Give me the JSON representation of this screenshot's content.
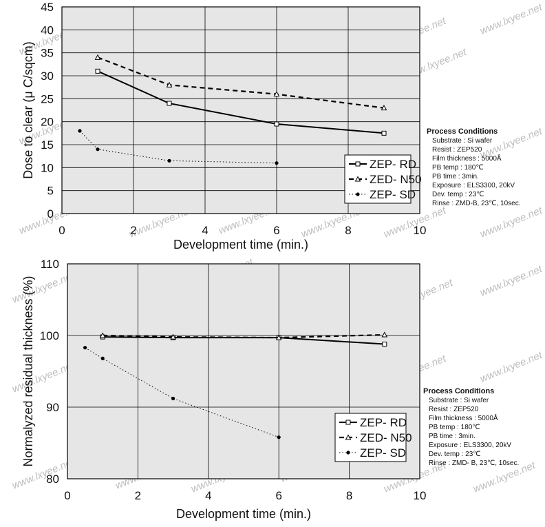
{
  "watermark": "www.lxyee.net",
  "chart_data": [
    {
      "type": "line",
      "xlabel": "Development time (min.)",
      "ylabel": "Dose to clear (μ C/sqcm)",
      "xlim": [
        0,
        10
      ],
      "ylim": [
        0,
        45
      ],
      "x_ticks": [
        "0",
        "2",
        "4",
        "6",
        "8",
        "10"
      ],
      "y_ticks": [
        "0",
        "5",
        "10",
        "15",
        "20",
        "25",
        "30",
        "35",
        "40",
        "45"
      ],
      "grid": true,
      "legend_position": "bottom-right",
      "series": [
        {
          "name": "ZEP- RD",
          "x": [
            1,
            3,
            6,
            9
          ],
          "y": [
            31,
            24,
            19.5,
            17.5
          ],
          "line": "solid",
          "marker": "square",
          "color": "#000000"
        },
        {
          "name": "ZED- N50",
          "x": [
            1,
            3,
            6,
            9
          ],
          "y": [
            34,
            28,
            26,
            23
          ],
          "line": "dashed",
          "marker": "triangle",
          "color": "#000000"
        },
        {
          "name": "ZEP- SD",
          "x": [
            0.5,
            1,
            3,
            6
          ],
          "y": [
            18,
            14,
            11.5,
            11
          ],
          "line": "dotted",
          "marker": "dot",
          "color": "#000000"
        }
      ],
      "process_conditions": {
        "title": "Process Conditions",
        "lines": [
          "Substrate : Si wafer",
          "Resist : ZEP520",
          "Film thickness : 5000Å",
          "PB temp : 180℃",
          "PB time : 3min.",
          "Exposure : ELS3300, 20kV",
          "Dev. temp : 23℃",
          "Rinse : ZMD-B, 23℃, 10sec."
        ]
      }
    },
    {
      "type": "line",
      "xlabel": "Development time (min.)",
      "ylabel": "Normalyzed residual thickness (%)",
      "xlim": [
        0,
        10
      ],
      "ylim": [
        80,
        110
      ],
      "x_ticks": [
        "0",
        "2",
        "4",
        "6",
        "8",
        "10"
      ],
      "y_ticks": [
        "80",
        "90",
        "100",
        "110"
      ],
      "grid": true,
      "legend_position": "bottom-right",
      "series": [
        {
          "name": "ZEP- RD",
          "x": [
            1,
            3,
            6,
            9
          ],
          "y": [
            99.8,
            99.7,
            99.7,
            98.8
          ],
          "line": "solid",
          "marker": "square",
          "color": "#000000"
        },
        {
          "name": "ZED- N50",
          "x": [
            1,
            3,
            6,
            9
          ],
          "y": [
            100,
            99.8,
            99.7,
            100.1
          ],
          "line": "dashed",
          "marker": "triangle",
          "color": "#000000"
        },
        {
          "name": "ZEP- SD",
          "x": [
            0.5,
            1,
            3,
            6
          ],
          "y": [
            98.3,
            96.8,
            91.2,
            85.8
          ],
          "line": "dotted",
          "marker": "dot",
          "color": "#000000"
        }
      ],
      "process_conditions": {
        "title": "Process Conditions",
        "lines": [
          "Substrate : Si wafer",
          "Resist : ZEP520",
          "Film thickness : 5000Å",
          "PB temp : 180℃",
          "PB time : 3min.",
          "Exposure : ELS3300, 20kV",
          "Dev. temp : 23℃",
          "Rinse : ZMD- B, 23℃, 10sec."
        ]
      }
    }
  ]
}
